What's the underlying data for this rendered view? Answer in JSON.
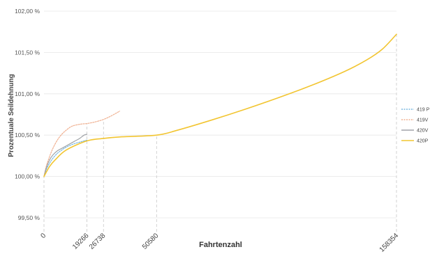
{
  "chart_data": {
    "type": "line",
    "title": "",
    "xlabel": "Fahrtenzahl",
    "ylabel": "Prozentuale Seildehnung",
    "xlim": [
      0,
      158354
    ],
    "ylim": [
      99.5,
      102.0
    ],
    "grid": true,
    "legend_position": "right",
    "y_ticks": [
      {
        "value": 99.5,
        "label": "99,50 %"
      },
      {
        "value": 100.0,
        "label": "100,00 %"
      },
      {
        "value": 100.5,
        "label": "100,50 %"
      },
      {
        "value": 101.0,
        "label": "101,00 %"
      },
      {
        "value": 101.5,
        "label": "101,50 %"
      },
      {
        "value": 102.0,
        "label": "102,00 %"
      }
    ],
    "x_ticks": [
      {
        "value": 0,
        "label": "0"
      },
      {
        "value": 19266,
        "label": "19266"
      },
      {
        "value": 26738,
        "label": "26738"
      },
      {
        "value": 50580,
        "label": "50580"
      },
      {
        "value": 158354,
        "label": "158354"
      }
    ],
    "series": [
      {
        "name": "419 P",
        "color": "#7ab8e0",
        "dash": "2,1.5",
        "x": [
          0,
          1000,
          2500,
          4000,
          6000,
          8000,
          10000,
          12000,
          14000,
          16000,
          18000,
          19266
        ],
        "y": [
          100.0,
          100.08,
          100.16,
          100.22,
          100.28,
          100.32,
          100.355,
          100.38,
          100.4,
          100.415,
          100.43,
          100.44
        ]
      },
      {
        "name": "419V",
        "color": "#f0b090",
        "dash": "2,1.5",
        "x": [
          0,
          1000,
          2500,
          4000,
          6000,
          8000,
          10000,
          12000,
          14000,
          17000,
          19266,
          23000,
          26738,
          30000,
          34000
        ],
        "y": [
          100.0,
          100.12,
          100.24,
          100.34,
          100.44,
          100.51,
          100.56,
          100.6,
          100.62,
          100.635,
          100.64,
          100.66,
          100.69,
          100.73,
          100.79
        ]
      },
      {
        "name": "420V",
        "color": "#a0a4a8",
        "dash": "",
        "x": [
          0,
          1000,
          2500,
          4000,
          6000,
          8000,
          10000,
          12000,
          14000,
          16000,
          18000,
          19266
        ],
        "y": [
          100.0,
          100.1,
          100.2,
          100.26,
          100.31,
          100.34,
          100.37,
          100.4,
          100.43,
          100.46,
          100.5,
          100.51
        ]
      },
      {
        "name": "420P",
        "color": "#f2c531",
        "dash": "",
        "x": [
          0,
          2500,
          5000,
          10000,
          19266,
          26738,
          35000,
          50580,
          60000,
          75000,
          90000,
          105000,
          120000,
          135000,
          145000,
          152000,
          158354
        ],
        "y": [
          100.0,
          100.12,
          100.2,
          100.32,
          100.43,
          100.46,
          100.48,
          100.5,
          100.56,
          100.68,
          100.81,
          100.95,
          101.1,
          101.27,
          101.41,
          101.54,
          101.72
        ]
      }
    ]
  }
}
